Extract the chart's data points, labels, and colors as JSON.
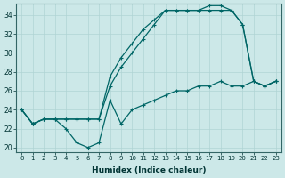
{
  "xlabel": "Humidex (Indice chaleur)",
  "ylabel": "",
  "xlim": [
    -0.5,
    23.5
  ],
  "ylim": [
    19.5,
    35.2
  ],
  "xticks": [
    0,
    1,
    2,
    3,
    4,
    5,
    6,
    7,
    8,
    9,
    10,
    11,
    12,
    13,
    14,
    15,
    16,
    17,
    18,
    19,
    20,
    21,
    22,
    23
  ],
  "yticks": [
    20,
    22,
    24,
    26,
    28,
    30,
    32,
    34
  ],
  "bg_color": "#cce8e8",
  "grid_color": "#b0d4d4",
  "line_color": "#006666",
  "line1_x": [
    0,
    1,
    2,
    3,
    4,
    5,
    6,
    7,
    8,
    9,
    10,
    11,
    12,
    13,
    14,
    15,
    16,
    17,
    18,
    19,
    20,
    21,
    22,
    23
  ],
  "line1_y": [
    24.0,
    22.5,
    23.0,
    23.0,
    22.0,
    20.5,
    20.0,
    20.5,
    25.0,
    22.5,
    24.0,
    24.5,
    25.0,
    25.5,
    26.0,
    26.0,
    26.5,
    26.5,
    27.0,
    26.5,
    26.5,
    27.0,
    26.5,
    27.0
  ],
  "line2_x": [
    0,
    1,
    2,
    3,
    4,
    5,
    6,
    7,
    8,
    9,
    10,
    11,
    12,
    13,
    14,
    15,
    16,
    17,
    18,
    19,
    20,
    21,
    22,
    23
  ],
  "line2_y": [
    24.0,
    22.5,
    23.0,
    23.0,
    23.0,
    23.0,
    23.0,
    23.0,
    26.5,
    28.5,
    30.0,
    31.5,
    33.0,
    34.5,
    34.5,
    34.5,
    34.5,
    34.5,
    34.5,
    34.5,
    33.0,
    27.0,
    26.5,
    27.0
  ],
  "line3_x": [
    0,
    1,
    2,
    3,
    4,
    5,
    6,
    7,
    8,
    9,
    10,
    11,
    12,
    13,
    14,
    15,
    16,
    17,
    18,
    19,
    20,
    21,
    22,
    23
  ],
  "line3_y": [
    24.0,
    22.5,
    23.0,
    23.0,
    23.0,
    23.0,
    23.0,
    23.0,
    27.5,
    29.5,
    31.0,
    32.5,
    33.5,
    34.5,
    34.5,
    34.5,
    34.5,
    35.0,
    35.0,
    34.5,
    33.0,
    27.0,
    26.5,
    27.0
  ]
}
